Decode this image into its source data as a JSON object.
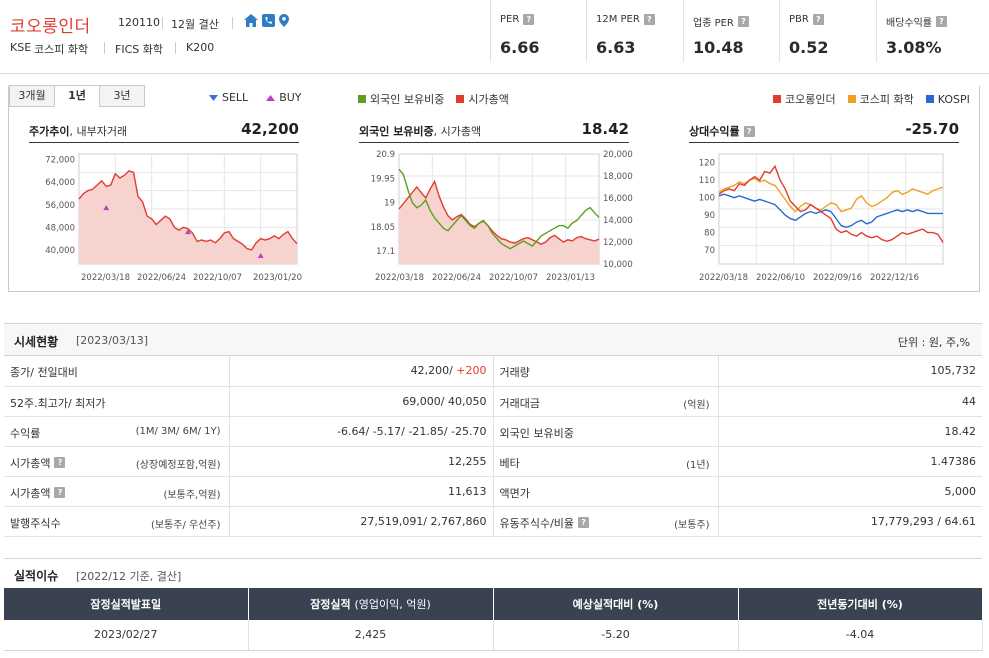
{
  "company": {
    "name": "코오롱인더",
    "code": "120110",
    "settlement": "12월 결산",
    "market": "KSE",
    "sector1": "코스피 화학",
    "sector2": "FICS 화학",
    "index": "K200"
  },
  "metrics": [
    {
      "label": "PER",
      "value": "6.66"
    },
    {
      "label": "12M PER",
      "value": "6.63"
    },
    {
      "label": "업종 PER",
      "value": "10.48"
    },
    {
      "label": "PBR",
      "value": "0.52"
    },
    {
      "label": "배당수익률",
      "value": "3.08%"
    }
  ],
  "tabs": [
    "3개월",
    "1년",
    "3년"
  ],
  "active_tab": "1년",
  "legends": {
    "sell": "SELL",
    "buy": "BUY",
    "foreign": "외국인 보유비중",
    "mcap": "시가총액",
    "company": "코오롱인더",
    "kospi_chem": "코스피 화학",
    "kospi": "KOSPI"
  },
  "colors": {
    "accent_red": "#e03c2f",
    "green": "#5aa01e",
    "orange": "#f0a020",
    "blue": "#2a6bd3",
    "sell_blue": "#3a6fd8",
    "buy_pink": "#c23cc2",
    "area_fill": "#f7d3d0"
  },
  "charts": {
    "price": {
      "title_bold": "주가추이",
      "title_rest": ", 내부자거래",
      "value": "42,200"
    },
    "foreign": {
      "title_bold": "외국인 보유비중",
      "title_rest": ", 시가총액",
      "value": "18.42"
    },
    "relative": {
      "title_bold": "상대수익률",
      "value": "-25.70"
    }
  },
  "chart_data": [
    {
      "type": "area",
      "name": "주가추이",
      "x_ticks": [
        "2022/03/18",
        "2022/06/24",
        "2022/10/07",
        "2023/01/20"
      ],
      "y_ticks": [
        "72,000",
        "64,000",
        "56,000",
        "48,000",
        "40,000"
      ],
      "ylim": [
        35000,
        74000
      ],
      "series": [
        {
          "name": "주가",
          "values": [
            58000,
            60000,
            61000,
            61500,
            63000,
            64500,
            62500,
            63000,
            67000,
            65500,
            66500,
            68000,
            67500,
            59000,
            57000,
            52000,
            51000,
            49000,
            50500,
            52000,
            51000,
            48000,
            47000,
            48000,
            47500,
            46000,
            43000,
            43500,
            43000,
            43500,
            42500,
            44000,
            46000,
            46500,
            44000,
            43000,
            42000,
            40500,
            40000,
            42500,
            44000,
            43500,
            44000,
            45000,
            44000,
            45500,
            46500,
            44000,
            42200
          ]
        }
      ],
      "buy_markers": [
        {
          "index": 6,
          "value": 55000
        },
        {
          "index": 24,
          "value": 46500
        },
        {
          "index": 40,
          "value": 38000
        }
      ]
    },
    {
      "type": "line",
      "name": "외국인 보유비중 / 시가총액",
      "x_ticks": [
        "2022/03/18",
        "2022/06/24",
        "2022/10/07",
        "2023/01/13"
      ],
      "y_left_ticks": [
        "20.9",
        "19.95",
        "19",
        "18.05",
        "17.1"
      ],
      "y_right_ticks": [
        "20,000",
        "18,000",
        "16,000",
        "14,000",
        "12,000",
        "10,000"
      ],
      "ylim_left": [
        16.6,
        20.9
      ],
      "ylim_right": [
        10000,
        20000
      ],
      "series": [
        {
          "name": "외국인 보유비중",
          "axis": "left",
          "values": [
            20.3,
            20.1,
            19.5,
            19.0,
            18.8,
            18.9,
            19.1,
            18.7,
            18.4,
            18.2,
            18.0,
            17.9,
            18.1,
            18.3,
            18.5,
            18.3,
            18.1,
            18.0,
            18.2,
            18.3,
            18.1,
            17.8,
            17.6,
            17.4,
            17.3,
            17.2,
            17.3,
            17.4,
            17.5,
            17.4,
            17.3,
            17.5,
            17.7,
            17.8,
            17.9,
            18.0,
            18.1,
            18.1,
            18.0,
            18.2,
            18.3,
            18.5,
            18.7,
            18.8,
            18.6,
            18.42
          ]
        },
        {
          "name": "시가총액",
          "axis": "right",
          "values": [
            15000,
            15500,
            16000,
            16500,
            17000,
            16500,
            16000,
            16800,
            17500,
            16200,
            15200,
            14400,
            14000,
            14300,
            14500,
            14100,
            13600,
            13400,
            13700,
            13900,
            13500,
            13000,
            12600,
            12300,
            12200,
            12000,
            11900,
            12100,
            12300,
            12400,
            12200,
            12000,
            11800,
            12000,
            12400,
            12600,
            12300,
            12000,
            12200,
            12100,
            12400,
            12500,
            12300,
            12200,
            12100,
            12255
          ]
        }
      ]
    },
    {
      "type": "line",
      "name": "상대수익률",
      "x_ticks": [
        "2022/03/18",
        "2022/06/10",
        "2022/09/16",
        "2022/12/16"
      ],
      "y_ticks": [
        "120",
        "110",
        "100",
        "90",
        "80",
        "70"
      ],
      "ylim": [
        62,
        125
      ],
      "series": [
        {
          "name": "코오롱인더",
          "values": [
            102,
            104,
            105,
            104,
            108,
            107,
            110,
            112,
            110,
            115,
            114,
            118,
            110,
            105,
            98,
            95,
            92,
            93,
            96,
            94,
            92,
            90,
            88,
            82,
            80,
            81,
            79,
            78,
            80,
            78,
            77,
            78,
            76,
            75,
            76,
            78,
            80,
            79,
            80,
            81,
            82,
            80,
            80,
            79,
            74.3
          ]
        },
        {
          "name": "코스피 화학",
          "values": [
            103,
            105,
            106,
            107,
            109,
            108,
            110,
            111,
            109,
            110,
            108,
            107,
            103,
            99,
            95,
            92,
            95,
            97,
            96,
            94,
            93,
            95,
            97,
            96,
            92,
            93,
            94,
            99,
            101,
            97,
            95,
            96,
            98,
            100,
            103,
            104,
            102,
            103,
            105,
            104,
            103,
            102,
            104,
            105,
            106
          ]
        },
        {
          "name": "KOSPI",
          "values": [
            101,
            102,
            101,
            100,
            101,
            100,
            99,
            98,
            99,
            98,
            97,
            96,
            93,
            90,
            88,
            87,
            89,
            91,
            92,
            91,
            92,
            93,
            92,
            88,
            84,
            83,
            84,
            86,
            87,
            85,
            86,
            89,
            90,
            91,
            92,
            93,
            92,
            93,
            92,
            93,
            92,
            91,
            91,
            91,
            91
          ]
        }
      ]
    }
  ],
  "market": {
    "title": "시세현황",
    "date": "[2023/03/13]",
    "unit": "단위 : 원, 주,%",
    "rows": [
      {
        "l_label": "종가/ 전일대비",
        "l_sub": "",
        "l_value": "42,200/",
        "l_value2": " +200",
        "r_label": "거래량",
        "r_sub": "",
        "r_value": "105,732"
      },
      {
        "l_label": "52주.최고가/ 최저가",
        "l_sub": "",
        "l_value": "69,000/ 40,050",
        "r_label": "거래대금",
        "r_sub": "(억원)",
        "r_value": "44"
      },
      {
        "l_label": "수익률",
        "l_sub": "(1M/ 3M/ 6M/ 1Y)",
        "l_value": "-6.64/ -5.17/ -21.85/ -25.70",
        "r_label": "외국인 보유비중",
        "r_sub": "",
        "r_value": "18.42"
      },
      {
        "l_label": "시가총액",
        "l_sub": "(상장예정포함,억원)",
        "l_value": "12,255",
        "r_label": "베타",
        "r_sub": "(1년)",
        "r_value": "1.47386"
      },
      {
        "l_label": "시가총액",
        "l_sub": "(보통주,억원)",
        "l_value": "11,613",
        "r_label": "액면가",
        "r_sub": "",
        "r_value": "5,000"
      },
      {
        "l_label": "발행주식수",
        "l_sub": "(보통주/ 우선주)",
        "l_value": "27,519,091/ 2,767,860",
        "r_label": "유동주식수/비율",
        "r_sub": "(보통주)",
        "r_value": "17,779,293 / 64.61"
      }
    ]
  },
  "earnings": {
    "title": "실적이슈",
    "date": "[2022/12 기준, 결산]",
    "headers": [
      "잠정실적발표일",
      "잠정실적",
      "(영업이익, 억원)",
      "예상실적대비 (%)",
      "전년동기대비 (%)"
    ],
    "row": [
      "2023/02/27",
      "2,425",
      "-5.20",
      "-4.04"
    ]
  }
}
